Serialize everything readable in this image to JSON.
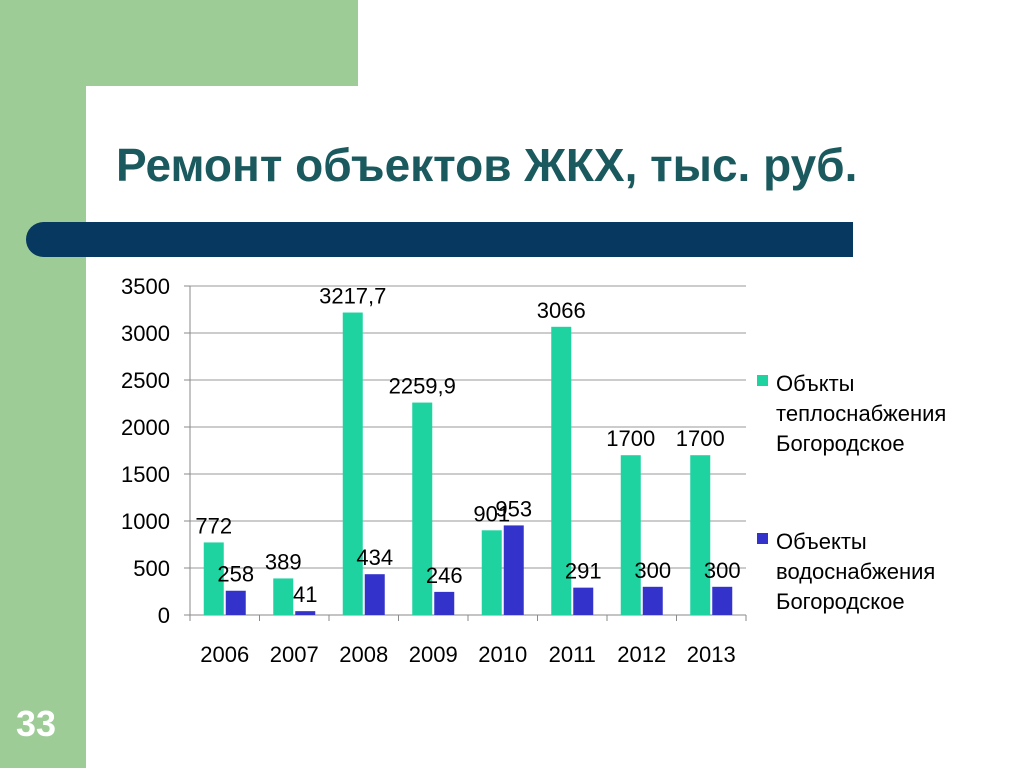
{
  "slide": {
    "title": "Ремонт объектов ЖКХ, тыс. руб.",
    "page_number": "33"
  },
  "colors": {
    "background_green": "#9dcc97",
    "title": "#1a5a5e",
    "band": "#063860",
    "series_1": "#1fd3a0",
    "series_2": "#3333cc"
  },
  "chart_data": {
    "type": "bar",
    "categories": [
      "2006",
      "2007",
      "2008",
      "2009",
      "2010",
      "2011",
      "2012",
      "2013"
    ],
    "series": [
      {
        "name": "Объкты теплоснабжения Богородское",
        "legend_lines": [
          "Объкты",
          "теплоснабжения",
          "Богородское"
        ],
        "color": "#1fd3a0",
        "values": [
          772,
          389,
          3217.7,
          2259.9,
          901,
          3066,
          1700,
          1700
        ],
        "labels": [
          "772",
          "389",
          "3217,7",
          "2259,9",
          "901",
          "3066",
          "1700",
          "1700"
        ]
      },
      {
        "name": "Объекты водоснабжения Богородское",
        "legend_lines": [
          "Объекты",
          "водоснабжения",
          "Богородское"
        ],
        "color": "#3333cc",
        "values": [
          258,
          41,
          434,
          246,
          953,
          291,
          300,
          300
        ],
        "labels": [
          "258",
          "41",
          "434",
          "246",
          "953",
          "291",
          "300",
          "300"
        ]
      }
    ],
    "ylim": [
      0,
      3500
    ],
    "yticks": [
      0,
      500,
      1000,
      1500,
      2000,
      2500,
      3000,
      3500
    ],
    "ytick_labels": [
      "0",
      "500",
      "1000",
      "1500",
      "2000",
      "2500",
      "3000",
      "3500"
    ],
    "grid": true,
    "legend_position": "right",
    "title": "",
    "xlabel": "",
    "ylabel": ""
  }
}
